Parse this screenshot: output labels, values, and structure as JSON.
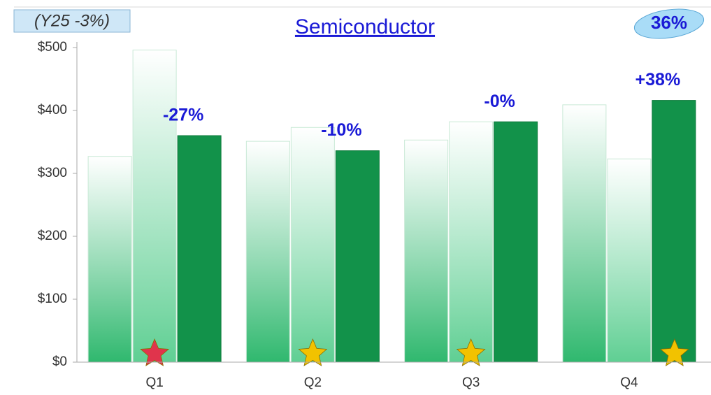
{
  "chart_data": {
    "type": "bar",
    "title": "Semiconductor",
    "note": "(Y25 -3%)",
    "badge": "36%",
    "categories": [
      "Q1",
      "Q2",
      "Q3",
      "Q4"
    ],
    "series": [
      {
        "color": "#2fb86e",
        "values": [
          327,
          351,
          353,
          409
        ]
      },
      {
        "color": "#5fcf93",
        "values": [
          496,
          373,
          382,
          323
        ]
      },
      {
        "color": "#12924a",
        "values": [
          360,
          336,
          382,
          416
        ]
      }
    ],
    "annotations": [
      "-27%",
      "-10%",
      "-0%",
      "+38%"
    ],
    "marker_colors": [
      "#e0344c",
      "#f2c200",
      "#f2c200",
      "#f2c200"
    ],
    "ylim": [
      0,
      500
    ],
    "yticks": [
      {
        "value": 0,
        "label": "$0"
      },
      {
        "value": 100,
        "label": "$100"
      },
      {
        "value": 200,
        "label": "$200"
      },
      {
        "value": 300,
        "label": "$300"
      },
      {
        "value": 400,
        "label": "$400"
      },
      {
        "value": 500,
        "label": "$500"
      }
    ],
    "grid": false
  }
}
